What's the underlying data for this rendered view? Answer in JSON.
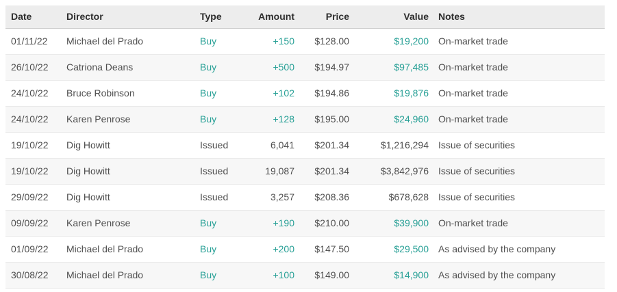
{
  "colors": {
    "accent_teal": "#28a096",
    "header_bg": "#ededed",
    "row_alt_bg": "#f7f7f7",
    "body_text": "#4f4f4f",
    "header_text": "#2e2e2e"
  },
  "table": {
    "buy_type_label": "Buy",
    "columns": [
      {
        "key": "date",
        "label": "Date"
      },
      {
        "key": "director",
        "label": "Director"
      },
      {
        "key": "type",
        "label": "Type"
      },
      {
        "key": "amount",
        "label": "Amount"
      },
      {
        "key": "price",
        "label": "Price"
      },
      {
        "key": "value",
        "label": "Value"
      },
      {
        "key": "notes",
        "label": "Notes"
      }
    ],
    "rows": [
      {
        "date": "01/11/22",
        "director": "Michael del Prado",
        "type": "Buy",
        "amount": "+150",
        "price": "$128.00",
        "value": "$19,200",
        "notes": "On-market trade"
      },
      {
        "date": "26/10/22",
        "director": "Catriona Deans",
        "type": "Buy",
        "amount": "+500",
        "price": "$194.97",
        "value": "$97,485",
        "notes": "On-market trade"
      },
      {
        "date": "24/10/22",
        "director": "Bruce Robinson",
        "type": "Buy",
        "amount": "+102",
        "price": "$194.86",
        "value": "$19,876",
        "notes": "On-market trade"
      },
      {
        "date": "24/10/22",
        "director": "Karen Penrose",
        "type": "Buy",
        "amount": "+128",
        "price": "$195.00",
        "value": "$24,960",
        "notes": "On-market trade"
      },
      {
        "date": "19/10/22",
        "director": "Dig Howitt",
        "type": "Issued",
        "amount": "6,041",
        "price": "$201.34",
        "value": "$1,216,294",
        "notes": "Issue of securities"
      },
      {
        "date": "19/10/22",
        "director": "Dig Howitt",
        "type": "Issued",
        "amount": "19,087",
        "price": "$201.34",
        "value": "$3,842,976",
        "notes": "Issue of securities"
      },
      {
        "date": "29/09/22",
        "director": "Dig Howitt",
        "type": "Issued",
        "amount": "3,257",
        "price": "$208.36",
        "value": "$678,628",
        "notes": "Issue of securities"
      },
      {
        "date": "09/09/22",
        "director": "Karen Penrose",
        "type": "Buy",
        "amount": "+190",
        "price": "$210.00",
        "value": "$39,900",
        "notes": "On-market trade"
      },
      {
        "date": "01/09/22",
        "director": "Michael del Prado",
        "type": "Buy",
        "amount": "+200",
        "price": "$147.50",
        "value": "$29,500",
        "notes": "As advised by the company"
      },
      {
        "date": "30/08/22",
        "director": "Michael del Prado",
        "type": "Buy",
        "amount": "+100",
        "price": "$149.00",
        "value": "$14,900",
        "notes": "As advised by the company"
      }
    ]
  }
}
